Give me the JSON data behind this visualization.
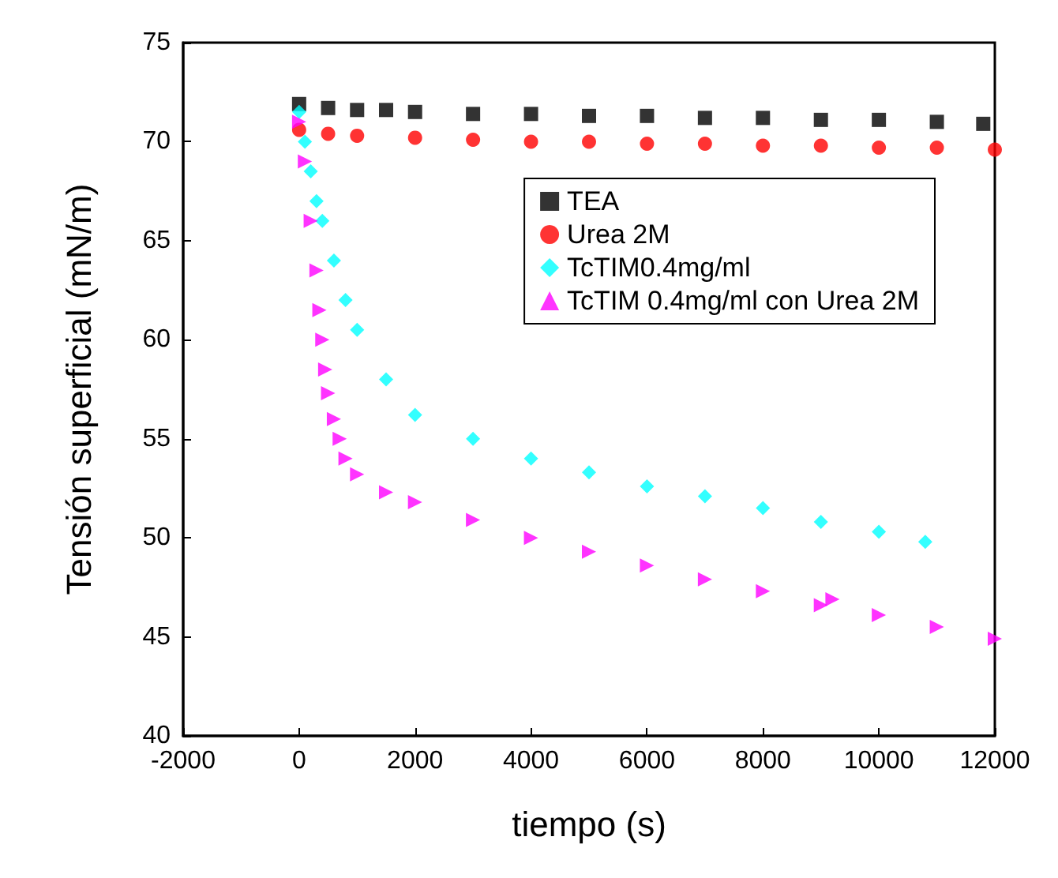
{
  "chart_data": {
    "type": "scatter",
    "xlabel": "tiempo (s)",
    "ylabel": "Tensión superficial (mN/m)",
    "xlim": [
      -2000,
      12000
    ],
    "xticks": [
      -2000,
      0,
      2000,
      4000,
      6000,
      8000,
      10000,
      12000
    ],
    "ylim": [
      40,
      75
    ],
    "yticks": [
      40,
      45,
      50,
      55,
      60,
      65,
      70,
      75
    ],
    "grid": false,
    "legend": "top right",
    "series": [
      {
        "name": "TEA",
        "color": "#000000",
        "marker": "square",
        "x": [
          0,
          500,
          1000,
          1500,
          2000,
          3000,
          4000,
          5000,
          6000,
          7000,
          8000,
          9000,
          10000,
          11000,
          11800
        ],
        "values": [
          71.9,
          71.7,
          71.6,
          71.6,
          71.5,
          71.4,
          71.4,
          71.3,
          71.3,
          71.2,
          71.2,
          71.1,
          71.1,
          71.0,
          70.9
        ]
      },
      {
        "name": "Urea 2M",
        "color": "#ff0000",
        "marker": "circle",
        "x": [
          0,
          500,
          1000,
          2000,
          3000,
          4000,
          5000,
          6000,
          7000,
          8000,
          9000,
          10000,
          11000,
          12000
        ],
        "values": [
          70.6,
          70.4,
          70.3,
          70.2,
          70.1,
          70.0,
          70.0,
          69.9,
          69.9,
          69.8,
          69.8,
          69.7,
          69.7,
          69.6
        ]
      },
      {
        "name": "TcTIM0.4mg/ml",
        "color": "#00ffff",
        "marker": "diamond",
        "x": [
          0,
          100,
          200,
          300,
          400,
          600,
          800,
          1000,
          1500,
          2000,
          3000,
          4000,
          5000,
          6000,
          7000,
          8000,
          9000,
          10000,
          10800
        ],
        "values": [
          71.5,
          70,
          68.5,
          67,
          66,
          64,
          62,
          60.5,
          58,
          56.2,
          55,
          54,
          53.3,
          52.6,
          52.1,
          51.5,
          50.8,
          50.3,
          49.8
        ]
      },
      {
        "name": "TcTIM 0.4mg/ml con Urea 2M",
        "color": "#ff00ff",
        "marker": "triangle",
        "x": [
          0,
          100,
          200,
          300,
          350,
          400,
          450,
          500,
          600,
          700,
          800,
          1000,
          1500,
          2000,
          3000,
          4000,
          5000,
          6000,
          7000,
          8000,
          9000,
          9200,
          10000,
          11000,
          12000
        ],
        "values": [
          71,
          69,
          66,
          63.5,
          61.5,
          60,
          58.5,
          57.3,
          56,
          55,
          54,
          53.2,
          52.3,
          51.8,
          50.9,
          50,
          49.3,
          48.6,
          47.9,
          47.3,
          46.6,
          46.9,
          46.1,
          45.5,
          44.9
        ]
      }
    ]
  }
}
